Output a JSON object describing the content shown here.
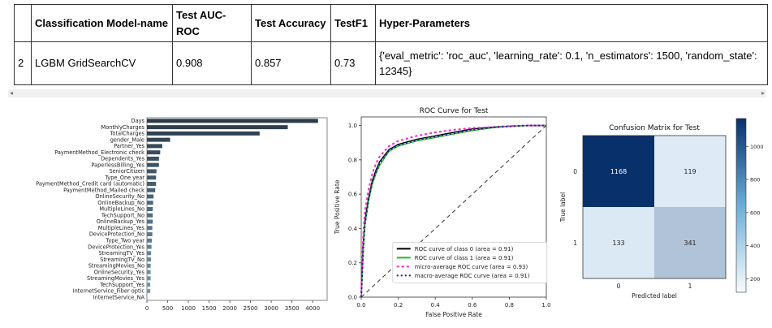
{
  "table": {
    "headers": [
      "",
      "Classification Model-name",
      "Test AUC-ROC",
      "Test Accuracy",
      "TestF1",
      "Hyper-Parameters"
    ],
    "rows": [
      [
        "2",
        "LGBM GridSearchCV",
        "0.908",
        "0.857",
        "0.73",
        "{'eval_metric': 'roc_auc', 'learning_rate': 0.1, 'n_estimators': 1500, 'random_state': 12345}"
      ]
    ]
  },
  "scroll": {
    "left_arrow": "◂",
    "right_arrow": "▸"
  },
  "chart_data": [
    {
      "type": "bar",
      "orientation": "horizontal",
      "title": "",
      "categories": [
        "Days",
        "MonthlyCharges",
        "TotalCharges",
        "gender_Male",
        "Partner_Yes",
        "PaymentMethod_Electronic check",
        "Dependents_Yes",
        "PaperlessBilling_Yes",
        "SeniorCitizen",
        "Type_One year",
        "PaymentMethod_Credit card (automatic)",
        "PaymentMethod_Mailed check",
        "OnlineSecurity_No",
        "OnlineBackup_No",
        "MultipleLines_No",
        "TechSupport_No",
        "OnlineBackup_Yes",
        "MultipleLines_Yes",
        "DeviceProtection_No",
        "Type_Two year",
        "DeviceProtection_Yes",
        "StreamingTV_Yes",
        "StreamingTV_No",
        "StreamingMovies_No",
        "OnlineSecurity_Yes",
        "StreamingMovies_Yes",
        "TechSupport_Yes",
        "InternetService_Fiber optic",
        "InternetService_NA"
      ],
      "values": [
        4130,
        3400,
        2720,
        560,
        370,
        320,
        290,
        290,
        230,
        220,
        220,
        200,
        160,
        150,
        140,
        140,
        140,
        130,
        130,
        120,
        110,
        100,
        100,
        90,
        90,
        90,
        80,
        80,
        10
      ],
      "xticks": [
        0,
        500,
        1000,
        1500,
        2000,
        2500,
        3000,
        3500,
        4000
      ],
      "xlim": [
        0,
        4350
      ]
    },
    {
      "type": "line",
      "title": "ROC Curve for Test",
      "xlabel": "False Positive Rate",
      "ylabel": "True Positive Rate",
      "xlim": [
        0,
        1.0
      ],
      "ylim": [
        0,
        1.05
      ],
      "xticks": [
        0.0,
        0.2,
        0.4,
        0.6,
        0.8,
        1.0
      ],
      "yticks": [
        0.0,
        0.2,
        0.4,
        0.6,
        0.8,
        1.0
      ],
      "legend_position": "lower-right",
      "series": [
        {
          "name": "ROC curve of class 0 (area = 0.91)",
          "color": "#000000",
          "dash": "",
          "x": [
            0,
            0.01,
            0.02,
            0.04,
            0.06,
            0.08,
            0.1,
            0.15,
            0.2,
            0.3,
            0.4,
            0.5,
            0.6,
            0.7,
            0.8,
            0.9,
            1.0
          ],
          "y": [
            0,
            0.3,
            0.45,
            0.58,
            0.68,
            0.74,
            0.79,
            0.86,
            0.89,
            0.92,
            0.94,
            0.96,
            0.98,
            0.99,
            0.995,
            1.0,
            1.0
          ]
        },
        {
          "name": "ROC curve of class 1 (area = 0.91)",
          "color": "#22bb22",
          "dash": "",
          "x": [
            0,
            0.01,
            0.02,
            0.04,
            0.06,
            0.08,
            0.1,
            0.15,
            0.2,
            0.3,
            0.4,
            0.5,
            0.6,
            0.7,
            0.8,
            0.9,
            1.0
          ],
          "y": [
            0,
            0.25,
            0.42,
            0.56,
            0.66,
            0.72,
            0.77,
            0.85,
            0.88,
            0.91,
            0.93,
            0.95,
            0.97,
            0.985,
            0.995,
            1.0,
            1.0
          ]
        },
        {
          "name": "micro-average ROC curve (area = 0.93)",
          "color": "#ff22cc",
          "dash": "3,3",
          "x": [
            0,
            0.01,
            0.02,
            0.04,
            0.06,
            0.08,
            0.1,
            0.15,
            0.2,
            0.3,
            0.4,
            0.5,
            0.6,
            0.7,
            0.8,
            0.9,
            1.0
          ],
          "y": [
            0,
            0.35,
            0.5,
            0.63,
            0.72,
            0.78,
            0.82,
            0.88,
            0.91,
            0.94,
            0.96,
            0.975,
            0.985,
            0.99,
            0.997,
            1.0,
            1.0
          ]
        },
        {
          "name": "macro-average ROC curve (area = 0.91)",
          "color": "#1a1a99",
          "dash": "2,3",
          "x": [
            0,
            0.01,
            0.02,
            0.04,
            0.06,
            0.08,
            0.1,
            0.15,
            0.2,
            0.3,
            0.4,
            0.5,
            0.6,
            0.7,
            0.8,
            0.9,
            1.0
          ],
          "y": [
            0,
            0.27,
            0.43,
            0.57,
            0.67,
            0.73,
            0.78,
            0.855,
            0.885,
            0.915,
            0.935,
            0.955,
            0.975,
            0.988,
            0.995,
            1.0,
            1.0
          ]
        },
        {
          "name": "",
          "color": "#333333",
          "dash": "5,4",
          "x": [
            0,
            1
          ],
          "y": [
            0,
            1
          ]
        }
      ]
    },
    {
      "type": "heatmap",
      "title": "Confusion Matrix for Test",
      "xlabel": "Predicted label",
      "ylabel": "True label",
      "row_labels": [
        "0",
        "1"
      ],
      "col_labels": [
        "0",
        "1"
      ],
      "values": [
        [
          1168,
          119
        ],
        [
          133,
          341
        ]
      ],
      "colorbar_ticks": [
        200,
        400,
        600,
        800,
        1000
      ]
    }
  ]
}
